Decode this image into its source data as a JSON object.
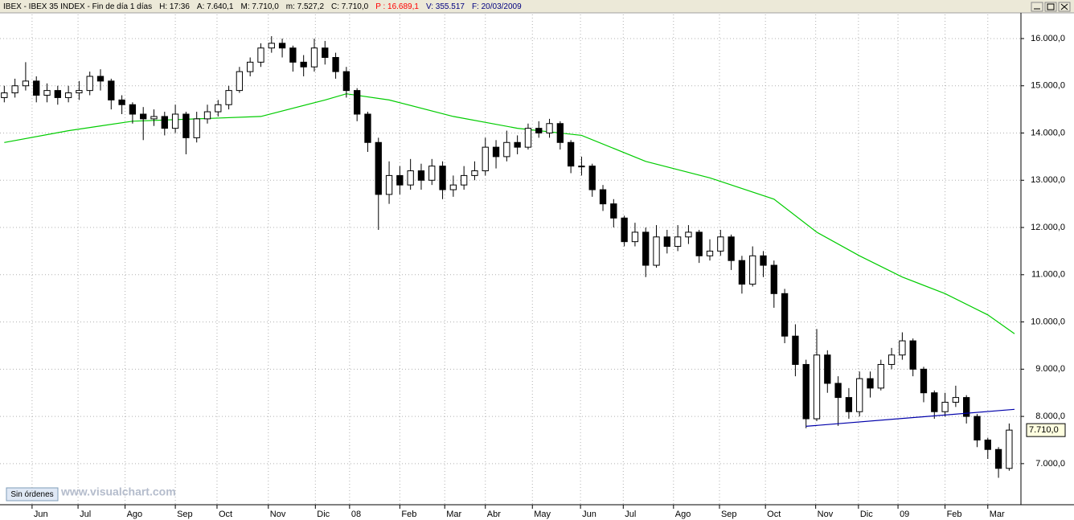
{
  "header": {
    "items": [
      {
        "text": "IBEX - IBEX 35 INDEX - Fin de día 1 días",
        "color": "#000000"
      },
      {
        "text": "H: 17:36",
        "color": "#000000"
      },
      {
        "text": "A: 7.640,1",
        "color": "#000000"
      },
      {
        "text": "M: 7.710,0",
        "color": "#000000"
      },
      {
        "text": "m: 7.527,2",
        "color": "#000000"
      },
      {
        "text": "C: 7.710,0",
        "color": "#000000"
      },
      {
        "text": "P : 16.689,1",
        "color": "#ff0000"
      },
      {
        "text": "V: 355.517",
        "color": "#000080"
      },
      {
        "text": "F: 20/03/2009",
        "color": "#000080"
      }
    ]
  },
  "status_button": "Sin órdenes",
  "watermark": "www.visualchart.com",
  "chart_data": {
    "type": "candlestick",
    "open": [
      14750,
      14850,
      15000,
      15100,
      14800,
      14900,
      14750,
      14850,
      14900,
      15200,
      15100,
      14700,
      14600,
      14400,
      14300,
      14350,
      14100,
      14400,
      13900,
      14300,
      14450,
      14600,
      14900,
      15300,
      15500,
      15800,
      15900,
      15800,
      15500,
      15400,
      15800,
      15600,
      15300,
      14900,
      14400,
      13800,
      12700,
      13100,
      12900,
      13200,
      13000,
      13300,
      12800,
      12900,
      13100,
      13200,
      13700,
      13500,
      13800,
      13700,
      14100,
      14000,
      14200,
      13800,
      13300,
      13300,
      12800,
      12500,
      12200,
      11700,
      11900,
      11200,
      11800,
      11600,
      11800,
      11900,
      11400,
      11500,
      11800,
      11300,
      10800,
      11400,
      11200,
      10600,
      9700,
      9100,
      7950,
      9300,
      8700,
      8400,
      8100,
      8800,
      8600,
      9100,
      9300,
      9600,
      9000,
      8500,
      8100,
      8300,
      8400,
      8000,
      7500,
      7300,
      6900
    ],
    "high": [
      15000,
      15150,
      15500,
      15200,
      15050,
      15000,
      15000,
      15100,
      15300,
      15350,
      15150,
      14800,
      14650,
      14550,
      14500,
      14450,
      14600,
      14450,
      14450,
      14600,
      14700,
      15000,
      15400,
      15600,
      15900,
      16050,
      16000,
      15850,
      15650,
      16000,
      15950,
      15700,
      15400,
      14950,
      14450,
      13900,
      13400,
      13300,
      13450,
      13350,
      13450,
      13400,
      13100,
      13300,
      13400,
      13900,
      13850,
      14050,
      13950,
      14200,
      14250,
      14300,
      14250,
      13850,
      13500,
      13350,
      12900,
      12600,
      12250,
      12100,
      12000,
      12050,
      11950,
      12050,
      12050,
      11950,
      11750,
      11950,
      11850,
      11400,
      11600,
      11500,
      11300,
      10700,
      9950,
      9200,
      9850,
      9400,
      8850,
      8600,
      8950,
      8950,
      9200,
      9450,
      9780,
      9650,
      9050,
      8550,
      8500,
      8650,
      8450,
      8050,
      7550,
      7350,
      7850
    ],
    "low": [
      14650,
      14750,
      14900,
      14650,
      14650,
      14600,
      14650,
      14700,
      14800,
      14900,
      14500,
      14400,
      14200,
      13850,
      14150,
      13950,
      14000,
      13550,
      13800,
      14200,
      14350,
      14500,
      14850,
      15200,
      15400,
      15700,
      15600,
      15300,
      15200,
      15300,
      15450,
      15150,
      14750,
      14250,
      13600,
      11950,
      12500,
      12700,
      12800,
      12800,
      12900,
      12600,
      12650,
      12800,
      13000,
      13100,
      13250,
      13400,
      13550,
      13650,
      13900,
      13900,
      13650,
      13150,
      13100,
      12650,
      12350,
      12000,
      11600,
      11600,
      10950,
      11150,
      11450,
      11500,
      11650,
      11250,
      11300,
      11400,
      11100,
      10600,
      10750,
      10950,
      10300,
      9550,
      8850,
      7750,
      7900,
      8500,
      7800,
      7950,
      8000,
      8400,
      8550,
      9000,
      9200,
      8850,
      8300,
      7950,
      8000,
      8200,
      7850,
      7350,
      7100,
      6700,
      6850
    ],
    "close": [
      14850,
      15000,
      15100,
      14800,
      14900,
      14750,
      14850,
      14900,
      15200,
      15100,
      14700,
      14600,
      14400,
      14300,
      14350,
      14100,
      14400,
      13900,
      14300,
      14450,
      14600,
      14900,
      15300,
      15500,
      15800,
      15900,
      15800,
      15500,
      15400,
      15800,
      15600,
      15300,
      14900,
      14400,
      13800,
      12700,
      13100,
      12900,
      13200,
      13000,
      13300,
      12800,
      12900,
      13100,
      13200,
      13700,
      13500,
      13800,
      13700,
      14100,
      14000,
      14200,
      13800,
      13300,
      13300,
      12800,
      12500,
      12200,
      11700,
      11900,
      11200,
      11800,
      11600,
      11800,
      11900,
      11400,
      11500,
      11800,
      11300,
      10800,
      11400,
      11200,
      10600,
      9700,
      9100,
      7950,
      9300,
      8700,
      8400,
      8100,
      8800,
      8600,
      9100,
      9300,
      9600,
      9000,
      8500,
      8100,
      8300,
      8400,
      8000,
      7500,
      7300,
      6900,
      7710
    ],
    "up_color": "#ffffff",
    "down_color": "#000000",
    "moving_average": {
      "color": "#00cc00",
      "x": [
        0,
        6,
        12,
        18,
        24,
        30,
        32,
        36,
        42,
        48,
        54,
        60,
        66,
        72,
        76,
        80,
        84,
        88,
        92,
        94.5
      ],
      "values": [
        13800,
        14050,
        14250,
        14300,
        14350,
        14700,
        14830,
        14700,
        14350,
        14100,
        13950,
        13400,
        13050,
        12600,
        11900,
        11400,
        10950,
        10600,
        10150,
        9750
      ]
    },
    "trend_line": {
      "color": "#0000aa",
      "x": [
        75,
        94.5
      ],
      "values": [
        7790,
        8150
      ]
    },
    "last_price": {
      "value": 7710,
      "label": "7.710,0"
    },
    "xlim": [
      -0.4,
      95.1
    ],
    "ylim": [
      6130,
      16510
    ],
    "xticks": [
      {
        "value": 2.6,
        "label": "Jun"
      },
      {
        "value": 6.9,
        "label": "Jul"
      },
      {
        "value": 11.3,
        "label": "Ago"
      },
      {
        "value": 16.0,
        "label": "Sep"
      },
      {
        "value": 19.9,
        "label": "Oct"
      },
      {
        "value": 24.7,
        "label": "Nov"
      },
      {
        "value": 29.1,
        "label": "Dic"
      },
      {
        "value": 32.3,
        "label": "08"
      },
      {
        "value": 37.0,
        "label": "Feb"
      },
      {
        "value": 41.2,
        "label": "Mar"
      },
      {
        "value": 45.0,
        "label": "Abr"
      },
      {
        "value": 49.4,
        "label": "May"
      },
      {
        "value": 53.9,
        "label": "Jun"
      },
      {
        "value": 57.9,
        "label": "Jul"
      },
      {
        "value": 62.6,
        "label": "Ago"
      },
      {
        "value": 66.9,
        "label": "Sep"
      },
      {
        "value": 71.2,
        "label": "Oct"
      },
      {
        "value": 75.9,
        "label": "Nov"
      },
      {
        "value": 79.9,
        "label": "Dic"
      },
      {
        "value": 83.6,
        "label": "09"
      },
      {
        "value": 88.0,
        "label": "Feb"
      },
      {
        "value": 92.0,
        "label": "Mar"
      }
    ],
    "yticks": [
      {
        "value": 7000,
        "label": "7.000,0"
      },
      {
        "value": 8000,
        "label": "8.000,0"
      },
      {
        "value": 9000,
        "label": "9.000,0"
      },
      {
        "value": 10000,
        "label": "10.000,0"
      },
      {
        "value": 11000,
        "label": "11.000,0"
      },
      {
        "value": 12000,
        "label": "12.000,0"
      },
      {
        "value": 13000,
        "label": "13.000,0"
      },
      {
        "value": 14000,
        "label": "14.000,0"
      },
      {
        "value": 15000,
        "label": "15.000,0"
      },
      {
        "value": 16000,
        "label": "16.000,0"
      }
    ],
    "grid": true
  }
}
